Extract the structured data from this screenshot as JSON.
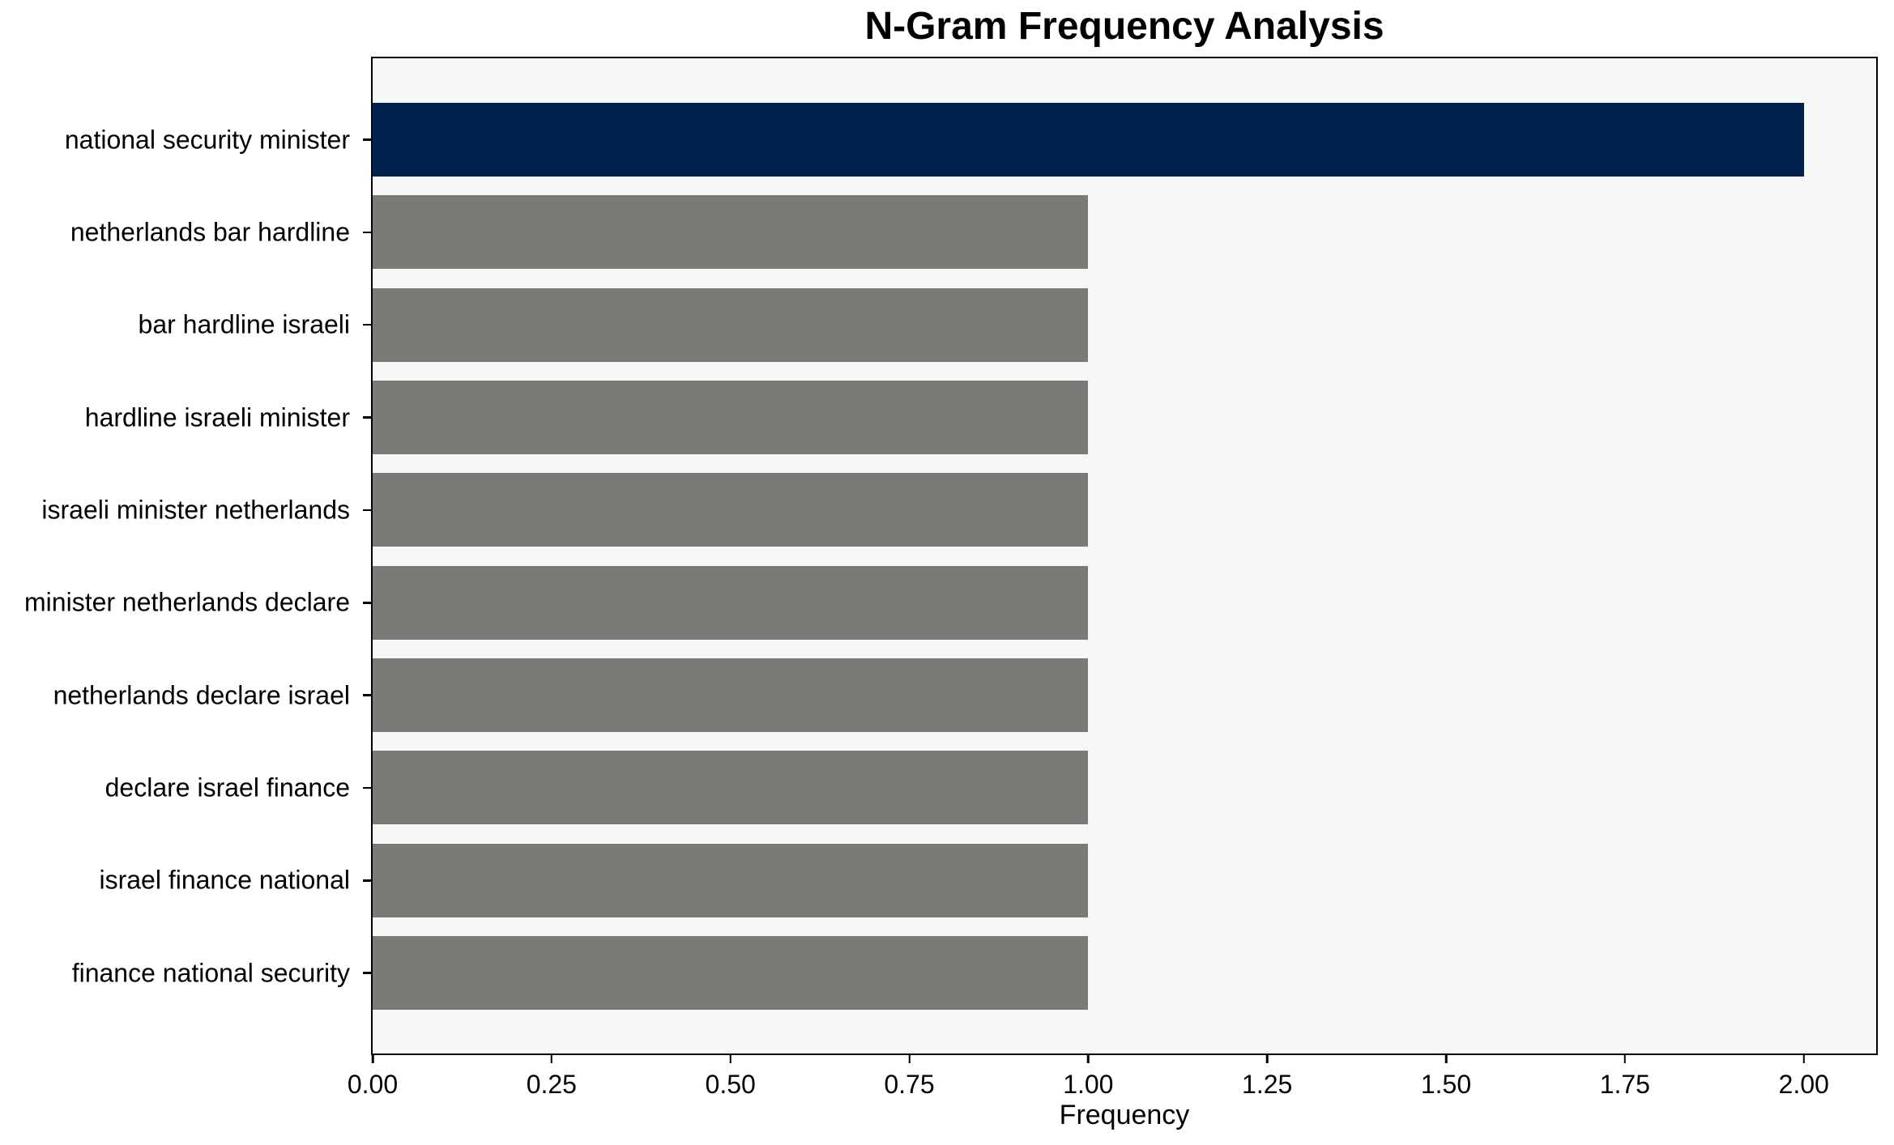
{
  "chart_data": {
    "type": "bar",
    "orientation": "horizontal",
    "title": "N-Gram Frequency Analysis",
    "xlabel": "Frequency",
    "ylabel": "",
    "categories": [
      "national security minister",
      "netherlands bar hardline",
      "bar hardline israeli",
      "hardline israeli minister",
      "israeli minister netherlands",
      "minister netherlands declare",
      "netherlands declare israel",
      "declare israel finance",
      "israel finance national",
      "finance national security"
    ],
    "values": [
      2,
      1,
      1,
      1,
      1,
      1,
      1,
      1,
      1,
      1
    ],
    "bar_colors": [
      "#00234e",
      "#7a7a77",
      "#7a7a77",
      "#7a7a77",
      "#7a7a77",
      "#7a7a77",
      "#7a7a77",
      "#7a7a77",
      "#7a7a77",
      "#7a7a77"
    ],
    "xlim": [
      0,
      2.1
    ],
    "x_ticks": [
      "0.00",
      "0.25",
      "0.50",
      "0.75",
      "1.00",
      "1.25",
      "1.50",
      "1.75",
      "2.00"
    ],
    "x_tick_values": [
      0,
      0.25,
      0.5,
      0.75,
      1.0,
      1.25,
      1.5,
      1.75,
      2.0
    ],
    "grid": false,
    "legend": null,
    "colors": {
      "highlight_bar": "#00234e",
      "default_bar": "#7a7a77",
      "plot_background": "#f7f7f7",
      "figure_background": "#ffffff",
      "text": "#000000",
      "spine": "#000000"
    }
  }
}
